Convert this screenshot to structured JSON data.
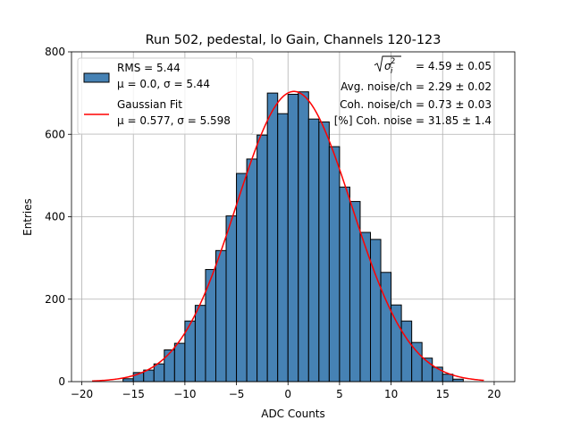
{
  "chart_data": {
    "type": "bar",
    "title": "Run 502, pedestal, lo Gain, Channels 120-123",
    "xlabel": "ADC Counts",
    "ylabel": "Entries",
    "xlim": [
      -21,
      22
    ],
    "ylim": [
      0,
      800
    ],
    "xticks": [
      -20,
      -15,
      -10,
      -5,
      0,
      5,
      10,
      15,
      20
    ],
    "yticks": [
      0,
      200,
      400,
      600,
      800
    ],
    "grid": true,
    "bar_color": "#4682b4",
    "bar_edge_color": "#000000",
    "fit_color": "#ff0000",
    "bin_width": 1,
    "bin_left_edges": [
      -16,
      -15,
      -14,
      -13,
      -12,
      -11,
      -10,
      -9,
      -8,
      -7,
      -6,
      -5,
      -4,
      -3,
      -2,
      -1,
      0,
      1,
      2,
      3,
      4,
      5,
      6,
      7,
      8,
      9,
      10,
      11,
      12,
      13,
      14,
      15,
      16
    ],
    "counts": [
      7,
      22,
      28,
      43,
      77,
      93,
      147,
      185,
      272,
      318,
      402,
      505,
      540,
      598,
      700,
      650,
      697,
      703,
      637,
      630,
      570,
      472,
      437,
      362,
      345,
      265,
      186,
      147,
      95,
      57,
      35,
      18,
      6
    ],
    "gaussian_fit": {
      "mu": 0.577,
      "sigma": 5.598,
      "amplitude": 704,
      "x_range": [
        -19,
        19
      ]
    },
    "legend": {
      "position": "top-left",
      "entries": [
        {
          "line1": "RMS = 5.44",
          "line2": "μ = 0.0, σ = 5.44",
          "marker": "patch"
        },
        {
          "line1": "Gaussian Fit",
          "line2": "μ = 0.577, σ = 5.598",
          "marker": "line"
        }
      ]
    },
    "annotations": {
      "sigma_expr_value": " = 4.59 ± 0.05",
      "avg_noise": "Avg. noise/ch = 2.29 ± 0.02",
      "coh_noise": "Coh. noise/ch = 0.73 ± 0.03",
      "pct_coh_noise": "[%] Coh. noise = 31.85 ± 1.4"
    }
  }
}
